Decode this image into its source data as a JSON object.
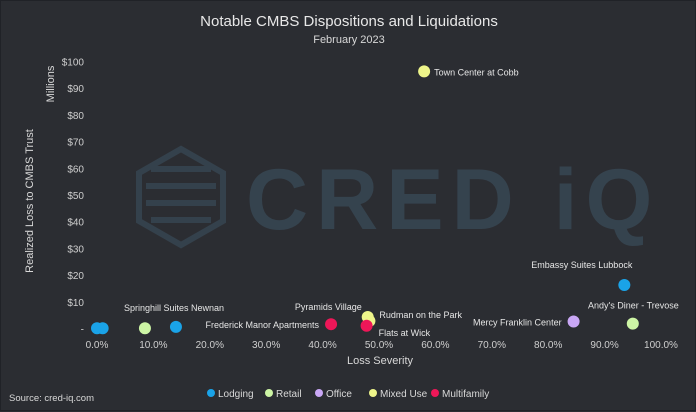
{
  "chart_data": {
    "type": "scatter",
    "title": "Notable CMBS Dispositions and Liquidations",
    "subtitle": "February 2023",
    "xlabel": "Loss Severity",
    "ylabel": "Realized Loss to CMBS Trust",
    "yunit_label": "Millions",
    "xlim": [
      0,
      100
    ],
    "ylim": [
      0,
      100
    ],
    "x_ticks": [
      "0.0%",
      "10.0%",
      "20.0%",
      "30.0%",
      "40.0%",
      "50.0%",
      "60.0%",
      "70.0%",
      "80.0%",
      "90.0%",
      "100.0%"
    ],
    "y_ticks": [
      "-",
      "$10",
      "$20",
      "$30",
      "$40",
      "$50",
      "$60",
      "$70",
      "$80",
      "$90",
      "$100"
    ],
    "grid": false,
    "legend_position": "bottom",
    "series": [
      {
        "name": "Lodging",
        "color": "#1aa3e8",
        "points": [
          {
            "x": 0.0,
            "y": 0.3,
            "label": ""
          },
          {
            "x": 1.0,
            "y": 0.3,
            "label": ""
          },
          {
            "x": 14.0,
            "y": 0.8,
            "label": "Springhill Suites Newnan"
          },
          {
            "x": 93.5,
            "y": 16.5,
            "label": "Embassy Suites Lubbock"
          }
        ]
      },
      {
        "name": "Retail",
        "color": "#cdf5a5",
        "points": [
          {
            "x": 8.5,
            "y": 0.3,
            "label": ""
          },
          {
            "x": 95.0,
            "y": 2.0,
            "label": "Andy's Diner - Trevose"
          }
        ]
      },
      {
        "name": "Office",
        "color": "#c9a7f5",
        "points": [
          {
            "x": 84.5,
            "y": 2.8,
            "label": "Mercy Franklin Center"
          }
        ]
      },
      {
        "name": "Mixed Use",
        "color": "#eef58a",
        "points": [
          {
            "x": 58.0,
            "y": 96.5,
            "label": "Town Center at Cobb"
          },
          {
            "x": 48.0,
            "y": 4.5,
            "label": "Pyramids Village"
          },
          {
            "x": 48.3,
            "y": 3.0,
            "label": "Rudman on the Park"
          }
        ]
      },
      {
        "name": "Multifamily",
        "color": "#ee1758",
        "points": [
          {
            "x": 41.5,
            "y": 1.8,
            "label": "Frederick Manor Apartments"
          },
          {
            "x": 47.8,
            "y": 1.2,
            "label": "Flats at Wick"
          }
        ]
      }
    ]
  },
  "source": "Source: cred-iq.com",
  "watermark": "CRED iQ"
}
